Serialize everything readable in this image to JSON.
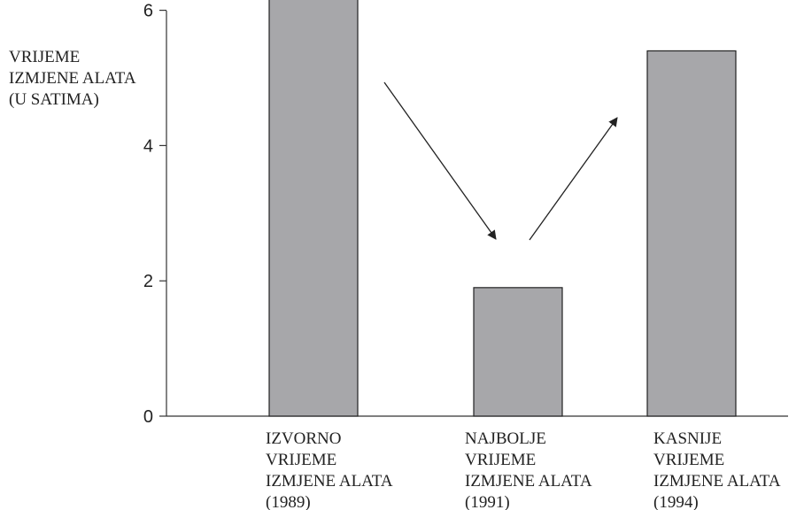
{
  "chart_data": {
    "type": "bar",
    "ylabel": [
      "VRIJEME",
      "IZMJENE ALATA",
      "(U SATIMA)"
    ],
    "xlabel": "",
    "ylim": [
      0,
      6.3
    ],
    "yticks": [
      0,
      2,
      4,
      6
    ],
    "ytick_labels": [
      "0",
      "2",
      "4",
      "6"
    ],
    "categories": [
      [
        "IZVORNO",
        "VRIJEME",
        "IZMJENE ALATA",
        "(1989)"
      ],
      [
        "NAJBOLJE",
        "VRIJEME",
        "IZMJENE ALATA",
        "(1991)"
      ],
      [
        "KASNIJE",
        "VRIJEME",
        "IZMJENE ALATA",
        "(1994)"
      ]
    ],
    "values": [
      6.2,
      1.9,
      5.4
    ],
    "grid": false,
    "legend": "none",
    "colors": {
      "bar": "#a7a7aa",
      "outline": "#222222",
      "axis": "#333333"
    },
    "annotations": [
      {
        "type": "arrow",
        "direction": "down",
        "between": "bar 1 and bar 2"
      },
      {
        "type": "arrow",
        "direction": "up",
        "between": "bar 2 and bar 3"
      }
    ]
  }
}
